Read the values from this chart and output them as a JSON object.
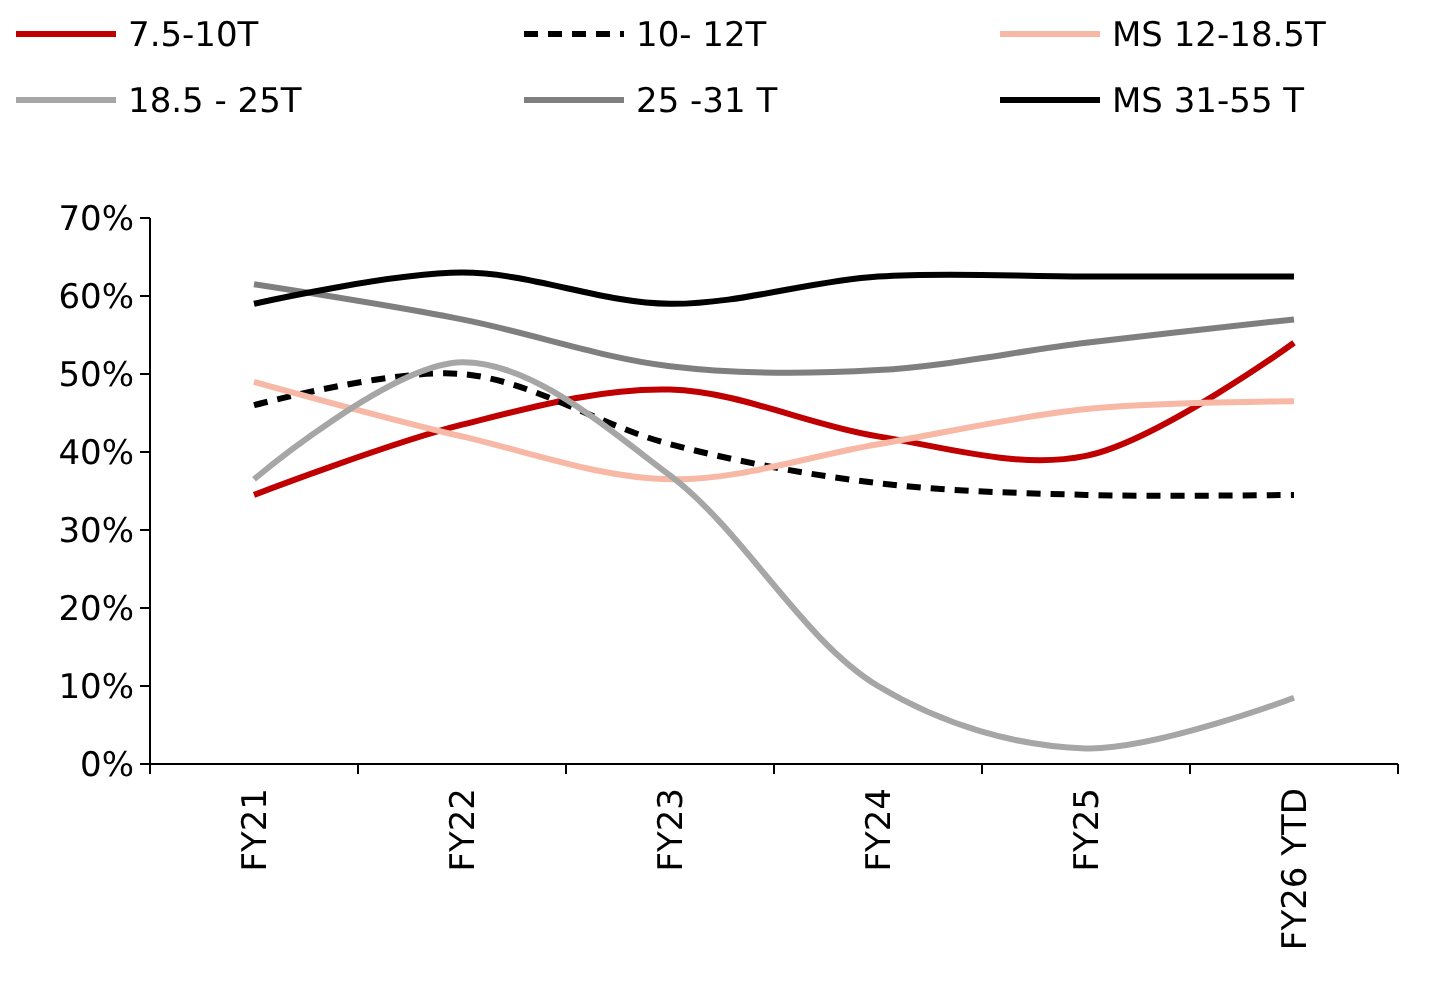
{
  "chart_data": {
    "type": "line",
    "categories": [
      "FY21",
      "FY22",
      "FY23",
      "FY24",
      "FY25",
      "FY26 YTD"
    ],
    "series": [
      {
        "name": "7.5-10T",
        "color": "#c00000",
        "values": [
          34.5,
          43.5,
          48,
          42,
          39.5,
          54
        ]
      },
      {
        "name": "10- 12T",
        "color": "#000000",
        "line_style": "dashed",
        "values": [
          46,
          50,
          41,
          36,
          34.5,
          34.5
        ]
      },
      {
        "name": "MS 12-18.5T",
        "color": "#f7b9a5",
        "values": [
          49,
          42,
          36.5,
          41,
          45.5,
          46.5
        ]
      },
      {
        "name": "18.5 - 25T",
        "color": "#a6a6a6",
        "values": [
          36.5,
          51.5,
          37,
          10,
          2,
          8.5
        ]
      },
      {
        "name": "25 -31 T",
        "color": "#7f7f7f",
        "values": [
          61.5,
          57,
          51,
          50.5,
          54,
          57
        ]
      },
      {
        "name": "MS 31-55 T",
        "color": "#000000",
        "values": [
          59,
          63,
          59,
          62.5,
          62.5,
          62.5
        ]
      }
    ],
    "ylim": [
      0,
      70
    ],
    "yticks": [
      {
        "value": 0,
        "label": "0%"
      },
      {
        "value": 10,
        "label": "10%"
      },
      {
        "value": 20,
        "label": "20%"
      },
      {
        "value": 30,
        "label": "30%"
      },
      {
        "value": 40,
        "label": "40%"
      },
      {
        "value": 50,
        "label": "50%"
      },
      {
        "value": 60,
        "label": "60%"
      },
      {
        "value": 70,
        "label": "70%"
      }
    ],
    "grid": false,
    "legend": "top",
    "marker": "none"
  }
}
